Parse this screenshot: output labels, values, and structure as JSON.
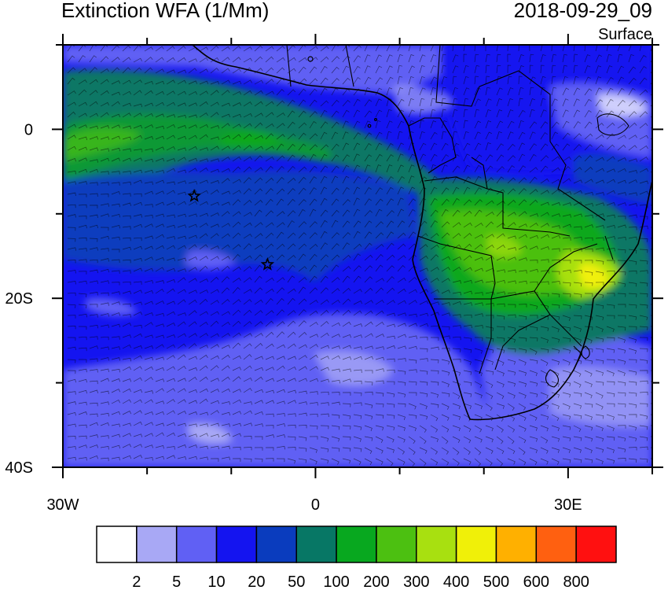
{
  "title": "Extinction WFA (1/Mm)",
  "timestamp": "2018-09-29_09",
  "level": "Surface",
  "map": {
    "lon_range": [
      -30,
      40
    ],
    "lat_range": [
      -40,
      10
    ],
    "x_ticks": [
      {
        "lon": -30,
        "label": "30W"
      },
      {
        "lon": 0,
        "label": "0"
      },
      {
        "lon": 30,
        "label": "30E"
      }
    ],
    "y_ticks": [
      {
        "lat": 0,
        "label": "0"
      },
      {
        "lat": -20,
        "label": "20S"
      },
      {
        "lat": -40,
        "label": "40S"
      }
    ],
    "markers": [
      {
        "name": "star-marker-1",
        "lon": -14.4,
        "lat": -7.9
      },
      {
        "name": "star-marker-2",
        "lon": -5.7,
        "lat": -16.0
      }
    ]
  },
  "colorbar": {
    "colors": [
      "#ffffff",
      "#a8a8f5",
      "#6060f4",
      "#1414f0",
      "#0a3cbe",
      "#077765",
      "#08a81f",
      "#4cc011",
      "#a8e010",
      "#f0f008",
      "#ffb000",
      "#ff6010",
      "#ff1010"
    ],
    "labels": [
      "2",
      "5",
      "10",
      "20",
      "50",
      "100",
      "200",
      "300",
      "400",
      "500",
      "600",
      "800"
    ]
  }
}
